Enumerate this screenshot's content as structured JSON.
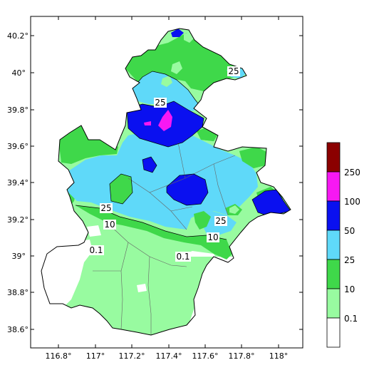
{
  "colors": {
    "c_0": "#ffffff",
    "c_0_1": "#98fba0",
    "c_10": "#3fd84a",
    "c_25": "#5fd9f9",
    "c_50": "#0a10f0",
    "c_100": "#f718f3",
    "c_250": "#8b0000",
    "border": "#000000",
    "district": "#666666"
  },
  "axes": {
    "y_ticks": [
      "40.2°",
      "40°",
      "39.8°",
      "39.6°",
      "39.4°",
      "39.2°",
      "39°",
      "38.8°",
      "38.6°"
    ],
    "x_ticks": [
      "116.8°",
      "117°",
      "117.2°",
      "117.4°",
      "117.6°",
      "117.8°",
      "118°"
    ]
  },
  "contour_labels": [
    "25",
    "25",
    "25",
    "25",
    "10",
    "10",
    "0.1",
    "0.1"
  ],
  "legend": {
    "entries": [
      {
        "label": "250",
        "color": "#8b0000"
      },
      {
        "label": "100",
        "color": "#f718f3"
      },
      {
        "label": "50",
        "color": "#0a10f0"
      },
      {
        "label": "25",
        "color": "#5fd9f9"
      },
      {
        "label": "10",
        "color": "#3fd84a"
      },
      {
        "label": "0.1",
        "color": "#98fba0"
      },
      {
        "label": "",
        "color": "#ffffff"
      }
    ]
  }
}
